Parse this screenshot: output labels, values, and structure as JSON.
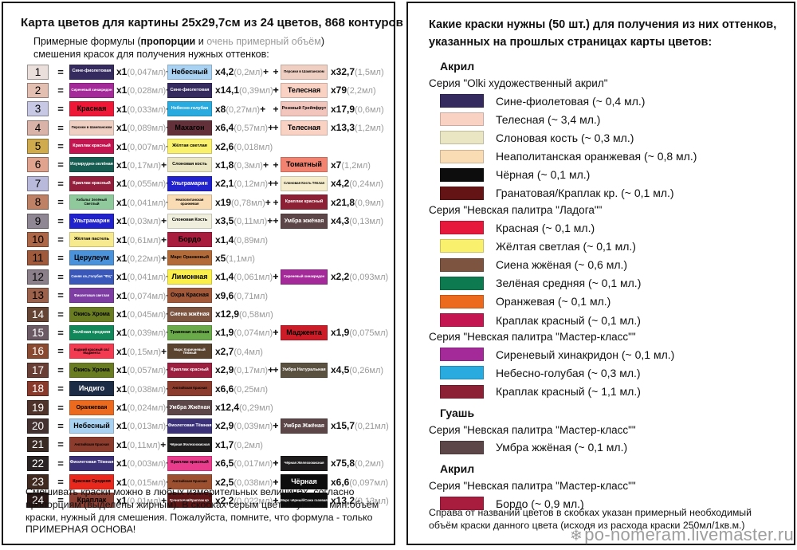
{
  "left": {
    "title": "Карта цветов для картины 25х29,7см из 24 цветов, 868 контуров",
    "subtitle_segments": [
      {
        "t": "Примерные формулы (",
        "s": "n"
      },
      {
        "t": "пропорции",
        "s": "b"
      },
      {
        "t": " и ",
        "s": "n"
      },
      {
        "t": "очень примерный объём",
        "s": "g"
      },
      {
        "t": ") смешения красок для получения нужных оттенков:",
        "s": "n"
      }
    ],
    "rows": [
      {
        "n": "1",
        "nbg": "#eadfdb",
        "nfg": "#000",
        "c": [
          {
            "label": "Сине-фиолетовая",
            "bg": "#352b5e",
            "fg": "#fff",
            "mult": "х1",
            "vol": "(0,047мл)",
            "p": "+"
          },
          {
            "label": "Небесный",
            "bg": "#a9d2f2",
            "fg": "#000",
            "mult": "х4,2",
            "vol": "(0,2мл)",
            "p": "+"
          },
          {
            "label": "Персики в Шампанском",
            "bg": "#efcfc2",
            "fg": "#000",
            "mult": "х32,7",
            "vol": "(1,5мл)",
            "p": ""
          }
        ]
      },
      {
        "n": "2",
        "nbg": "#e3bfb2",
        "nfg": "#000",
        "c": [
          {
            "label": "Сиреневый хинакридон",
            "bg": "#a32a98",
            "fg": "#fff",
            "mult": "х1",
            "vol": "(0,028мл)",
            "p": "+"
          },
          {
            "label": "Сине-фиолетовая",
            "bg": "#352b5e",
            "fg": "#fff",
            "mult": "х14,1",
            "vol": "(0,39мл)",
            "p": "+"
          },
          {
            "label": "Телесная",
            "bg": "#f9d2c4",
            "fg": "#000",
            "mult": "х79",
            "vol": "(2,2мл)",
            "p": ""
          }
        ]
      },
      {
        "n": "3",
        "nbg": "#c6c8e4",
        "nfg": "#000",
        "c": [
          {
            "label": "Красная",
            "bg": "#ee1836",
            "fg": "#000",
            "mult": "х1",
            "vol": "(0,033мл)",
            "p": "+"
          },
          {
            "label": "Небесно-голубая",
            "bg": "#29abdf",
            "fg": "#fff",
            "mult": "х8",
            "vol": "(0,27мл)",
            "p": "+"
          },
          {
            "label": "Розовый Грейпфрут",
            "bg": "#f3c6bd",
            "fg": "#000",
            "mult": "х17,9",
            "vol": "(0,6мл)",
            "p": ""
          }
        ]
      },
      {
        "n": "4",
        "nbg": "#d9b3a7",
        "nfg": "#000",
        "c": [
          {
            "label": "Персики в Шампанском",
            "bg": "#efcfc2",
            "fg": "#000",
            "mult": "х1",
            "vol": "(0,089мл)",
            "p": "+"
          },
          {
            "label": "Махагон",
            "bg": "#613038",
            "fg": "#000",
            "mult": "х6,4",
            "vol": "(0,57мл)",
            "p": "+"
          },
          {
            "label": "Телесная",
            "bg": "#f9d2c4",
            "fg": "#000",
            "mult": "х13,3",
            "vol": "(1,2мл)",
            "p": ""
          }
        ]
      },
      {
        "n": "5",
        "nbg": "#d0ab4e",
        "nfg": "#000",
        "c": [
          {
            "label": "Краплак красный",
            "bg": "#c31650",
            "fg": "#fff",
            "mult": "х1",
            "vol": "(0,007мл)",
            "p": "+"
          },
          {
            "label": "Жёлтая светлая",
            "bg": "#f9f06e",
            "fg": "#000",
            "mult": "х2,6",
            "vol": "(0,018мл)",
            "p": ""
          }
        ]
      },
      {
        "n": "6",
        "nbg": "#dfa38e",
        "nfg": "#000",
        "c": [
          {
            "label": "Изумрудно-зелёная",
            "bg": "#175c50",
            "fg": "#fff",
            "mult": "х1",
            "vol": "(0,17мл)",
            "p": "+"
          },
          {
            "label": "Слоновая кость",
            "bg": "#eae6c4",
            "fg": "#000",
            "mult": "х1,8",
            "vol": "(0,3мл)",
            "p": "+"
          },
          {
            "label": "Томатный",
            "bg": "#f28370",
            "fg": "#000",
            "mult": "х7",
            "vol": "(1,2мл)",
            "p": ""
          }
        ]
      },
      {
        "n": "7",
        "nbg": "#b9b9dc",
        "nfg": "#000",
        "c": [
          {
            "label": "Краплак красный",
            "bg": "#941f3c",
            "fg": "#fff",
            "mult": "х1",
            "vol": "(0,055мл)",
            "p": "+"
          },
          {
            "label": "Ультрамарин",
            "bg": "#2222cc",
            "fg": "#fff",
            "mult": "х2,1",
            "vol": "(0,12мл)",
            "p": "+"
          },
          {
            "label": "Слоновая Кость Тёплая",
            "bg": "#f4ecca",
            "fg": "#000",
            "mult": "х4,2",
            "vol": "(0,24мл)",
            "p": ""
          }
        ]
      },
      {
        "n": "8",
        "nbg": "#bf8166",
        "nfg": "#000",
        "c": [
          {
            "label": "Кобальт Зелёный Светлый",
            "bg": "#90ca9c",
            "fg": "#000",
            "mult": "х1",
            "vol": "(0,041мл)",
            "p": "+"
          },
          {
            "label": "Неаполитанская оранжевая",
            "bg": "#f9dcb4",
            "fg": "#000",
            "mult": "х19",
            "vol": "(0,78мл)",
            "p": "+"
          },
          {
            "label": "Краплак красный",
            "bg": "#8c2136",
            "fg": "#fff",
            "mult": "х21,8",
            "vol": "(0,9мл)",
            "p": ""
          }
        ]
      },
      {
        "n": "9",
        "nbg": "#8f8793",
        "nfg": "#000",
        "c": [
          {
            "label": "Ультрамарин",
            "bg": "#2222cc",
            "fg": "#fff",
            "mult": "х1",
            "vol": "(0,03мл)",
            "p": "+"
          },
          {
            "label": "Слоновая Кость",
            "bg": "#f0eedc",
            "fg": "#000",
            "mult": "х3,5",
            "vol": "(0,11мл)",
            "p": "+"
          },
          {
            "label": "Умбра жжёная",
            "bg": "#5c4647",
            "fg": "#fff",
            "mult": "х4,3",
            "vol": "(0,13мл)",
            "p": ""
          }
        ]
      },
      {
        "n": "10",
        "nbg": "#ad6747",
        "nfg": "#000",
        "c": [
          {
            "label": "Жёлтая пастель",
            "bg": "#f7e98e",
            "fg": "#000",
            "mult": "х1",
            "vol": "(0,61мл)",
            "p": "+"
          },
          {
            "label": "Бордо",
            "bg": "#a81c3e",
            "fg": "#000",
            "mult": "х1,4",
            "vol": "(0,89мл)",
            "p": ""
          }
        ]
      },
      {
        "n": "11",
        "nbg": "#9e5a3a",
        "nfg": "#000",
        "c": [
          {
            "label": "Церулеум",
            "bg": "#4a92da",
            "fg": "#000",
            "mult": "х1",
            "vol": "(0,22мл)",
            "p": "+"
          },
          {
            "label": "Марс Оранжевый",
            "bg": "#b26a38",
            "fg": "#000",
            "mult": "х5",
            "vol": "(1,1мл)",
            "p": ""
          }
        ]
      },
      {
        "n": "12",
        "nbg": "#8b8089",
        "nfg": "#000",
        "c": [
          {
            "label": "Синяя св.,Голубая \"ФЦ\"",
            "bg": "#3a58ba",
            "fg": "#fff",
            "mult": "х1",
            "vol": "(0,041мл)",
            "p": "+"
          },
          {
            "label": "Лимонная",
            "bg": "#f9ee4a",
            "fg": "#000",
            "mult": "х1,4",
            "vol": "(0,061мл)",
            "p": "+"
          },
          {
            "label": "Сиреневый хинакридон",
            "bg": "#a32a98",
            "fg": "#fff",
            "mult": "х2,2",
            "vol": "(0,093мл)",
            "p": ""
          }
        ]
      },
      {
        "n": "13",
        "nbg": "#9b614a",
        "nfg": "#000",
        "c": [
          {
            "label": "Фиолетовая светлая",
            "bg": "#7d3da2",
            "fg": "#fff",
            "mult": "х1",
            "vol": "(0,074мл)",
            "p": "+"
          },
          {
            "label": "Охра Красная",
            "bg": "#a2593a",
            "fg": "#000",
            "mult": "х9,6",
            "vol": "(0,71мл)",
            "p": ""
          }
        ]
      },
      {
        "n": "14",
        "nbg": "#664433",
        "nfg": "#fff",
        "c": [
          {
            "label": "Окись Хрома",
            "bg": "#697c22",
            "fg": "#000",
            "mult": "х1",
            "vol": "(0,045мл)",
            "p": "+"
          },
          {
            "label": "Сиена жжёная",
            "bg": "#7c5440",
            "fg": "#fff",
            "mult": "х12,9",
            "vol": "(0,58мл)",
            "p": ""
          }
        ]
      },
      {
        "n": "15",
        "nbg": "#6b5a63",
        "nfg": "#fff",
        "c": [
          {
            "label": "Зелёная средняя",
            "bg": "#12875a",
            "fg": "#fff",
            "mult": "х1",
            "vol": "(0,039мл)",
            "p": "+"
          },
          {
            "label": "Травяная зелёная",
            "bg": "#6aaa4a",
            "fg": "#000",
            "mult": "х1,9",
            "vol": "(0,074мл)",
            "p": "+"
          },
          {
            "label": "Маджента",
            "bg": "#cc1c28",
            "fg": "#000",
            "mult": "х1,9",
            "vol": "(0,075мл)",
            "p": ""
          }
        ]
      },
      {
        "n": "16",
        "nbg": "#8a4a31",
        "nfg": "#fff",
        "c": [
          {
            "label": "Кадмий красный св./Маджента",
            "bg": "#f23b50",
            "fg": "#000",
            "mult": "х1",
            "vol": "(0,15мл)",
            "p": "+"
          },
          {
            "label": "Марс Коричневый Тёмный",
            "bg": "#5a442f",
            "fg": "#fff",
            "mult": "х2,7",
            "vol": "(0,4мл)",
            "p": ""
          }
        ]
      },
      {
        "n": "17",
        "nbg": "#693f35",
        "nfg": "#fff",
        "c": [
          {
            "label": "Окись Хрома",
            "bg": "#697c22",
            "fg": "#000",
            "mult": "х1",
            "vol": "(0,057мл)",
            "p": "+"
          },
          {
            "label": "Краплак красный",
            "bg": "#9c2040",
            "fg": "#fff",
            "mult": "х2,9",
            "vol": "(0,17мл)",
            "p": "+"
          },
          {
            "label": "Умбра Натуральная",
            "bg": "#5b5140",
            "fg": "#fff",
            "mult": "х4,5",
            "vol": "(0,26мл)",
            "p": ""
          }
        ]
      },
      {
        "n": "18",
        "nbg": "#8a3a2a",
        "nfg": "#fff",
        "c": [
          {
            "label": "Индиго",
            "bg": "#1d2c45",
            "fg": "#fff",
            "mult": "х1",
            "vol": "(0,038мл)",
            "p": "+"
          },
          {
            "label": "Английская Красная",
            "bg": "#8c3c2c",
            "fg": "#000",
            "mult": "х6,6",
            "vol": "(0,25мл)",
            "p": ""
          }
        ]
      },
      {
        "n": "19",
        "nbg": "#4e332a",
        "nfg": "#fff",
        "c": [
          {
            "label": "Оранжевая",
            "bg": "#ec6a1e",
            "fg": "#000",
            "mult": "х1",
            "vol": "(0,024мл)",
            "p": "+"
          },
          {
            "label": "Умбра Жжёная",
            "bg": "#5c4647",
            "fg": "#fff",
            "mult": "х12,4",
            "vol": "(0,29мл)",
            "p": ""
          }
        ]
      },
      {
        "n": "20",
        "nbg": "#443230",
        "nfg": "#fff",
        "c": [
          {
            "label": "Небесный",
            "bg": "#a9d2f2",
            "fg": "#000",
            "mult": "х1",
            "vol": "(0,013мл)",
            "p": "+"
          },
          {
            "label": "Фиолетовая Тёмная",
            "bg": "#3b3179",
            "fg": "#fff",
            "mult": "х2,9",
            "vol": "(0,039мл)",
            "p": "+"
          },
          {
            "label": "Умбра Жжёная",
            "bg": "#5c4647",
            "fg": "#fff",
            "mult": "х15,7",
            "vol": "(0,21мл)",
            "p": ""
          }
        ]
      },
      {
        "n": "21",
        "nbg": "#392a23",
        "nfg": "#fff",
        "c": [
          {
            "label": "Английская Красная",
            "bg": "#8c3c2c",
            "fg": "#000",
            "mult": "х1",
            "vol": "(0,11мл)",
            "p": "+"
          },
          {
            "label": "Чёрная Железоокисная",
            "bg": "#1e1c1c",
            "fg": "#fff",
            "mult": "х1,7",
            "vol": "(0,2мл)",
            "p": ""
          }
        ]
      },
      {
        "n": "22",
        "nbg": "#2a2323",
        "nfg": "#fff",
        "c": [
          {
            "label": "Фиолетовая Тёмная",
            "bg": "#3b3179",
            "fg": "#fff",
            "mult": "х1",
            "vol": "(0,003мл)",
            "p": "+"
          },
          {
            "label": "Краплак красный",
            "bg": "#ea3c8c",
            "fg": "#000",
            "mult": "х6,5",
            "vol": "(0,017мл)",
            "p": "+"
          },
          {
            "label": "Чёрная Железоокисная",
            "bg": "#1e1c1c",
            "fg": "#fff",
            "mult": "х75,8",
            "vol": "(0,2мл)",
            "p": ""
          }
        ]
      },
      {
        "n": "23",
        "nbg": "#40291e",
        "nfg": "#fff",
        "c": [
          {
            "label": "Красная Средняя",
            "bg": "#e8281c",
            "fg": "#000",
            "mult": "х1",
            "vol": "(0,015мл)",
            "p": "+"
          },
          {
            "label": "Английская Красная",
            "bg": "#9c5030",
            "fg": "#000",
            "mult": "х2,5",
            "vol": "(0,038мл)",
            "p": "+"
          },
          {
            "label": "Чёрная",
            "bg": "#0d0d0d",
            "fg": "#fff",
            "mult": "х6,6",
            "vol": "(0,097мл)",
            "p": ""
          }
        ]
      },
      {
        "n": "24",
        "nbg": "#291715",
        "nfg": "#fff",
        "c": [
          {
            "label": "Краплак",
            "bg": "#8c4034",
            "fg": "#000",
            "mult": "х1",
            "vol": "(0,01мл)",
            "p": "+"
          },
          {
            "label": "Гранатовая/Краплак кр.",
            "bg": "#5e1616",
            "fg": "#fff",
            "mult": "х2,2",
            "vol": "(0,022мл)",
            "p": "+"
          },
          {
            "label": "Марс чёрный/Сажа газовая",
            "bg": "#0d0d0d",
            "fg": "#fff",
            "mult": "х13,2",
            "vol": "(0,13мл)",
            "p": ""
          }
        ]
      }
    ],
    "footer": "Смешивать краски можно в любых измерительных величинах, согласно пропорциям (выделены жирным). В скобках серым цветом указан мин.объём краски, нужный для смешения. Пожалуйста, помните, что формула - только ПРИМЕРНАЯ ОСНОВА!"
  },
  "right": {
    "title": "Какие краски нужны (50 шт.) для получения из них оттенков, указанных на прошлых страницах карты цветов:",
    "sections": [
      {
        "heading": "Акрил",
        "series": [
          {
            "name": "Серия \"Olki художественный акрил\"",
            "items": [
              {
                "name": "Сине-фиолетовая",
                "vol": "(~ 0,4 мл.)",
                "color": "#352b5e"
              },
              {
                "name": "Телесная",
                "vol": "(~ 3,4 мл.)",
                "color": "#f9d2c4"
              },
              {
                "name": "Слоновая кость",
                "vol": "(~ 0,3 мл.)",
                "color": "#eae6c4"
              },
              {
                "name": "Неаполитанская оранжевая",
                "vol": "(~ 0,8 мл.)",
                "color": "#f9dcb4"
              },
              {
                "name": "Чёрная",
                "vol": "(~ 0,1 мл.)",
                "color": "#0d0d0d"
              },
              {
                "name": "Гранатовая/Краплак кр.",
                "vol": "(~ 0,1 мл.)",
                "color": "#641414"
              }
            ]
          },
          {
            "name": "Серия \"Невская палитра \"Ладога\"\"",
            "items": [
              {
                "name": "Красная",
                "vol": "(~ 0,1 мл.)",
                "color": "#e6193c"
              },
              {
                "name": "Жёлтая светлая",
                "vol": "(~ 0,1 мл.)",
                "color": "#f9f06e"
              },
              {
                "name": "Сиена жжёная",
                "vol": "(~ 0,6 мл.)",
                "color": "#7c5440"
              },
              {
                "name": "Зелёная средняя",
                "vol": "(~ 0,1 мл.)",
                "color": "#0e7a50"
              },
              {
                "name": "Оранжевая",
                "vol": "(~ 0,1 мл.)",
                "color": "#ec6a1e"
              },
              {
                "name": "Краплак красный",
                "vol": "(~ 0,1 мл.)",
                "color": "#c41650"
              }
            ]
          },
          {
            "name": "Серия \"Невская палитра \"Мастер-класс\"\"",
            "items": [
              {
                "name": "Сиреневый хинакридон",
                "vol": "(~ 0,1 мл.)",
                "color": "#a32a98"
              },
              {
                "name": "Небесно-голубая",
                "vol": "(~ 0,3 мл.)",
                "color": "#29abdf"
              },
              {
                "name": "Краплак красный",
                "vol": "(~ 1,1 мл.)",
                "color": "#8c2136"
              }
            ]
          }
        ]
      },
      {
        "heading": "Гуашь",
        "series": [
          {
            "name": "Серия \"Невская палитра \"Мастер-класс\"\"",
            "items": [
              {
                "name": "Умбра жжёная",
                "vol": "(~ 0,1 мл.)",
                "color": "#5c4647"
              }
            ]
          }
        ]
      },
      {
        "heading": "Акрил",
        "series": [
          {
            "name": "Серия \"Невская палитра \"Мастер-класс\"\"",
            "items": [
              {
                "name": "Бордо",
                "vol": "(~ 0,9 мл.)",
                "color": "#a81c3e"
              }
            ]
          }
        ]
      }
    ],
    "footer": "Справа от названий цветов в скобках указан примерный необходимый объём краски данного цвета (исходя из расхода краски 250мл/1кв.м.)"
  },
  "watermark": {
    "icon": "snowflake-icon",
    "glyph": "❄",
    "text": "po-nomeram.livemaster.ru"
  }
}
